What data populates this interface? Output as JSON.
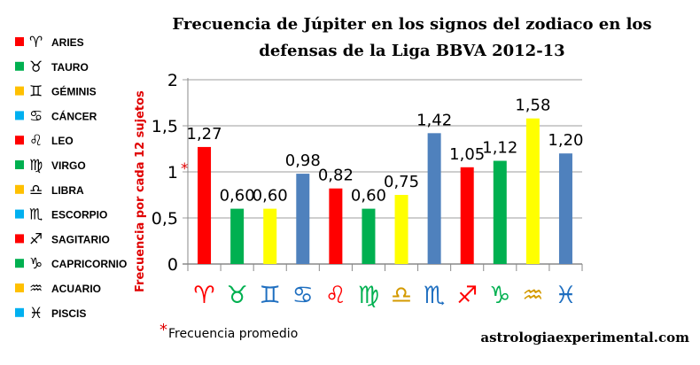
{
  "chart_data": {
    "type": "bar",
    "title_line1": "Frecuencia de Júpiter en los signos del zodiaco en los",
    "title_line2": "defensas de la Liga BBVA 2012-13",
    "ylabel": "Frecuencia por cada 12 sujetos",
    "ylim": [
      0,
      2
    ],
    "yticks": [
      "0",
      "0,5",
      "1",
      "1,5",
      "2"
    ],
    "ytick_values": [
      0,
      0.5,
      1,
      1.5,
      2
    ],
    "average_marker": "*",
    "grid": true,
    "categories": [
      "ARIES",
      "TAURO",
      "GÉMINIS",
      "CÁNCER",
      "LEO",
      "VIRGO",
      "LIBRA",
      "ESCORPIO",
      "SAGITARIO",
      "CAPRICORNIO",
      "ACUARIO",
      "PISCIS"
    ],
    "symbols": [
      "♈",
      "♉",
      "♊",
      "♋",
      "♌",
      "♍",
      "♎",
      "♏",
      "♐",
      "♑",
      "♒",
      "♓"
    ],
    "values": [
      1.27,
      0.6,
      0.6,
      0.98,
      0.82,
      0.6,
      0.75,
      1.42,
      1.05,
      1.12,
      1.58,
      1.2
    ],
    "data_labels": [
      "1,27",
      "0,60",
      "0,60",
      "0,98",
      "0,82",
      "0,60",
      "0,75",
      "1,42",
      "1,05",
      "1,12",
      "1,58",
      "1,20"
    ],
    "bar_colors": [
      "#ff0000",
      "#00b050",
      "#ffff00",
      "#4f81bd",
      "#ff0000",
      "#00b050",
      "#ffff00",
      "#4f81bd",
      "#ff0000",
      "#00b050",
      "#ffff00",
      "#4f81bd"
    ],
    "symbol_colors": [
      "#ff0000",
      "#00b050",
      "#1f6fc0",
      "#1f6fc0",
      "#ff0000",
      "#00b050",
      "#d49a00",
      "#1f6fc0",
      "#ff0000",
      "#00b050",
      "#d49a00",
      "#1f6fc0"
    ],
    "legend_colors": [
      "#ff0000",
      "#00b050",
      "#ffc000",
      "#00b0f0",
      "#ff0000",
      "#00b050",
      "#ffc000",
      "#00b0f0",
      "#ff0000",
      "#00b050",
      "#ffc000",
      "#00b0f0"
    ],
    "legend_placement": "left"
  },
  "footnote": {
    "marker": "*",
    "text": "Frecuencia promedio"
  },
  "source": "astrologiaexperimental.com"
}
